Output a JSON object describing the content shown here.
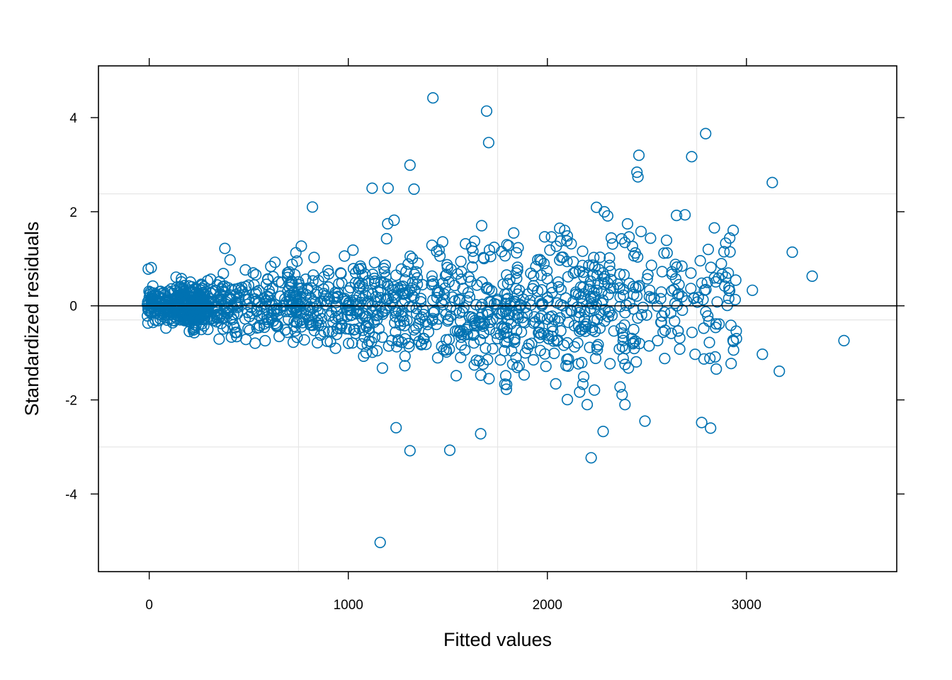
{
  "chart_data": {
    "type": "scatter",
    "xlabel": "Fitted values",
    "ylabel": "Standardized residuals",
    "xlim": [
      -255,
      3755
    ],
    "ylim": [
      -5.65,
      5.1
    ],
    "xticks": [
      0,
      1000,
      2000,
      3000
    ],
    "yticks": [
      -4,
      -2,
      0,
      2,
      4
    ],
    "xtick_labels": [
      "0",
      "1000",
      "2000",
      "3000"
    ],
    "ytick_labels": [
      "-4",
      "-2",
      "0",
      "2",
      "4"
    ],
    "reference_line_y": 0,
    "grid": {
      "x": [
        750,
        1750,
        2750
      ],
      "y": [
        2.38,
        -0.3,
        -3.0
      ]
    },
    "colors": {
      "points": "#0072b2",
      "grid": "#e6e6e6",
      "frame": "#000000"
    },
    "marker": "open-circle",
    "approximate_point_count": 1500,
    "notable_points": [
      [
        1425,
        4.42
      ],
      [
        1695,
        4.14
      ],
      [
        1705,
        3.47
      ],
      [
        2795,
        3.66
      ],
      [
        2460,
        3.2
      ],
      [
        2725,
        3.17
      ],
      [
        2450,
        2.84
      ],
      [
        2455,
        2.74
      ],
      [
        3130,
        2.62
      ],
      [
        1310,
        2.99
      ],
      [
        1120,
        2.5
      ],
      [
        1200,
        2.5
      ],
      [
        1330,
        2.48
      ],
      [
        820,
        2.1
      ],
      [
        1160,
        -5.03
      ],
      [
        1310,
        -3.08
      ],
      [
        1510,
        -3.07
      ],
      [
        2220,
        -3.23
      ],
      [
        1240,
        -2.59
      ],
      [
        1665,
        -2.72
      ],
      [
        2280,
        -2.67
      ],
      [
        2820,
        -2.6
      ],
      [
        2775,
        -2.48
      ],
      [
        2490,
        -2.45
      ],
      [
        3490,
        -0.74
      ],
      [
        3330,
        0.63
      ],
      [
        3230,
        1.14
      ],
      [
        3030,
        0.33
      ],
      [
        3165,
        -1.39
      ],
      [
        3080,
        -1.03
      ],
      [
        -5,
        0.78
      ],
      [
        10,
        0.81
      ],
      [
        380,
        1.22
      ]
    ]
  }
}
